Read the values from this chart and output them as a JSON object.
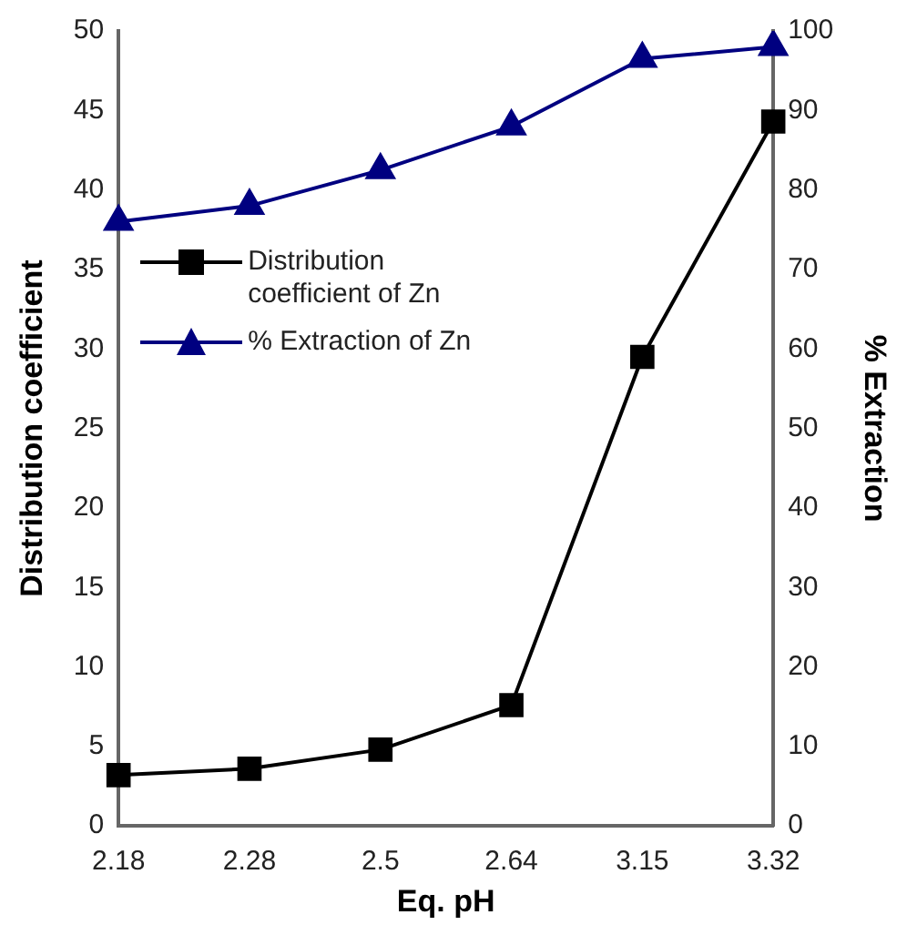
{
  "chart_data": {
    "type": "line",
    "xlabel": "Eq. pH",
    "ylabel": "Distribution coefficient",
    "y2label": "% Extraction",
    "categories": [
      "2.18",
      "2.28",
      "2.5",
      "2.64",
      "3.15",
      "3.32"
    ],
    "series": [
      {
        "name": "Distribution coefficient of Zn",
        "color": "#000000",
        "marker": "square",
        "values": [
          3.2,
          3.6,
          4.8,
          7.6,
          29.5,
          44.3
        ]
      },
      {
        "name": "% Extraction of Zn",
        "color": "#000080",
        "marker": "triangle",
        "axis": "y2",
        "values": [
          76,
          78,
          82.5,
          88,
          96.5,
          98
        ]
      }
    ],
    "ylim": [
      0,
      50
    ],
    "yticks": [
      0,
      5,
      10,
      15,
      20,
      25,
      30,
      35,
      40,
      45,
      50
    ],
    "y2lim": [
      0,
      100
    ],
    "y2ticks": [
      0,
      10,
      20,
      30,
      40,
      50,
      60,
      70,
      80,
      90,
      100
    ],
    "grid": false,
    "legend": "center left",
    "line_style": "solid"
  }
}
